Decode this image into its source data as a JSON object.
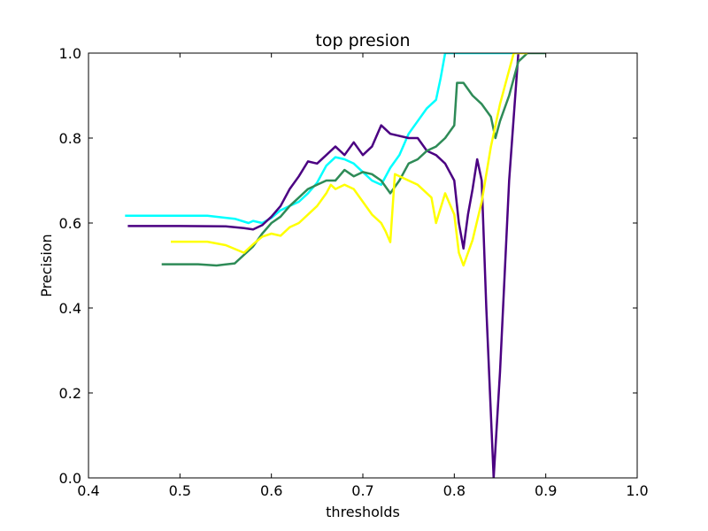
{
  "chart_data": {
    "type": "line",
    "title": "top presion",
    "xlabel": "thresholds",
    "ylabel": "Precision",
    "xlim": [
      0.4,
      1.0
    ],
    "ylim": [
      0.0,
      1.0
    ],
    "xticks": [
      "0.4",
      "0.5",
      "0.6",
      "0.7",
      "0.8",
      "0.9",
      "1.0"
    ],
    "yticks": [
      "0.0",
      "0.2",
      "0.4",
      "0.6",
      "0.8",
      "1.0"
    ],
    "grid": false,
    "series": [
      {
        "color": "#00ffff",
        "values": [
          [
            0.44,
            0.617
          ],
          [
            0.5,
            0.617
          ],
          [
            0.53,
            0.617
          ],
          [
            0.56,
            0.61
          ],
          [
            0.575,
            0.6
          ],
          [
            0.58,
            0.605
          ],
          [
            0.59,
            0.6
          ],
          [
            0.6,
            0.612
          ],
          [
            0.61,
            0.63
          ],
          [
            0.62,
            0.64
          ],
          [
            0.63,
            0.65
          ],
          [
            0.64,
            0.67
          ],
          [
            0.65,
            0.695
          ],
          [
            0.66,
            0.735
          ],
          [
            0.67,
            0.755
          ],
          [
            0.68,
            0.75
          ],
          [
            0.69,
            0.74
          ],
          [
            0.7,
            0.72
          ],
          [
            0.71,
            0.7
          ],
          [
            0.72,
            0.69
          ],
          [
            0.73,
            0.73
          ],
          [
            0.74,
            0.76
          ],
          [
            0.75,
            0.81
          ],
          [
            0.76,
            0.84
          ],
          [
            0.77,
            0.87
          ],
          [
            0.78,
            0.89
          ],
          [
            0.785,
            0.94
          ],
          [
            0.79,
            1.0
          ],
          [
            0.87,
            1.0
          ]
        ]
      },
      {
        "color": "#4b0082",
        "values": [
          [
            0.443,
            0.593
          ],
          [
            0.5,
            0.593
          ],
          [
            0.55,
            0.592
          ],
          [
            0.57,
            0.588
          ],
          [
            0.58,
            0.585
          ],
          [
            0.59,
            0.595
          ],
          [
            0.6,
            0.615
          ],
          [
            0.61,
            0.64
          ],
          [
            0.62,
            0.68
          ],
          [
            0.63,
            0.71
          ],
          [
            0.64,
            0.745
          ],
          [
            0.65,
            0.74
          ],
          [
            0.66,
            0.76
          ],
          [
            0.67,
            0.78
          ],
          [
            0.68,
            0.76
          ],
          [
            0.69,
            0.79
          ],
          [
            0.7,
            0.76
          ],
          [
            0.71,
            0.78
          ],
          [
            0.72,
            0.83
          ],
          [
            0.73,
            0.81
          ],
          [
            0.75,
            0.8
          ],
          [
            0.76,
            0.8
          ],
          [
            0.77,
            0.77
          ],
          [
            0.78,
            0.76
          ],
          [
            0.79,
            0.74
          ],
          [
            0.8,
            0.7
          ],
          [
            0.805,
            0.6
          ],
          [
            0.81,
            0.54
          ],
          [
            0.815,
            0.62
          ],
          [
            0.82,
            0.68
          ],
          [
            0.825,
            0.75
          ],
          [
            0.83,
            0.7
          ],
          [
            0.835,
            0.4
          ],
          [
            0.843,
            0.0
          ],
          [
            0.85,
            0.25
          ],
          [
            0.86,
            0.7
          ],
          [
            0.87,
            1.0
          ]
        ]
      },
      {
        "color": "#2e8b57",
        "values": [
          [
            0.48,
            0.503
          ],
          [
            0.52,
            0.503
          ],
          [
            0.54,
            0.5
          ],
          [
            0.56,
            0.505
          ],
          [
            0.57,
            0.525
          ],
          [
            0.58,
            0.545
          ],
          [
            0.59,
            0.575
          ],
          [
            0.6,
            0.6
          ],
          [
            0.61,
            0.615
          ],
          [
            0.62,
            0.64
          ],
          [
            0.63,
            0.66
          ],
          [
            0.64,
            0.68
          ],
          [
            0.65,
            0.69
          ],
          [
            0.66,
            0.7
          ],
          [
            0.67,
            0.7
          ],
          [
            0.68,
            0.725
          ],
          [
            0.69,
            0.71
          ],
          [
            0.7,
            0.72
          ],
          [
            0.71,
            0.715
          ],
          [
            0.72,
            0.7
          ],
          [
            0.73,
            0.67
          ],
          [
            0.74,
            0.7
          ],
          [
            0.75,
            0.74
          ],
          [
            0.76,
            0.75
          ],
          [
            0.77,
            0.77
          ],
          [
            0.78,
            0.78
          ],
          [
            0.79,
            0.8
          ],
          [
            0.8,
            0.83
          ],
          [
            0.803,
            0.93
          ],
          [
            0.81,
            0.93
          ],
          [
            0.82,
            0.9
          ],
          [
            0.83,
            0.88
          ],
          [
            0.84,
            0.85
          ],
          [
            0.845,
            0.8
          ],
          [
            0.85,
            0.84
          ],
          [
            0.86,
            0.9
          ],
          [
            0.87,
            0.98
          ],
          [
            0.88,
            1.0
          ],
          [
            0.9,
            1.0
          ]
        ]
      },
      {
        "color": "#ffff00",
        "values": [
          [
            0.49,
            0.556
          ],
          [
            0.53,
            0.556
          ],
          [
            0.55,
            0.548
          ],
          [
            0.57,
            0.53
          ],
          [
            0.58,
            0.55
          ],
          [
            0.59,
            0.568
          ],
          [
            0.6,
            0.575
          ],
          [
            0.61,
            0.57
          ],
          [
            0.62,
            0.59
          ],
          [
            0.63,
            0.6
          ],
          [
            0.64,
            0.62
          ],
          [
            0.65,
            0.64
          ],
          [
            0.66,
            0.67
          ],
          [
            0.665,
            0.69
          ],
          [
            0.67,
            0.68
          ],
          [
            0.68,
            0.69
          ],
          [
            0.69,
            0.68
          ],
          [
            0.7,
            0.65
          ],
          [
            0.71,
            0.62
          ],
          [
            0.72,
            0.6
          ],
          [
            0.725,
            0.58
          ],
          [
            0.73,
            0.555
          ],
          [
            0.735,
            0.715
          ],
          [
            0.75,
            0.7
          ],
          [
            0.76,
            0.69
          ],
          [
            0.775,
            0.66
          ],
          [
            0.78,
            0.6
          ],
          [
            0.79,
            0.67
          ],
          [
            0.8,
            0.62
          ],
          [
            0.805,
            0.53
          ],
          [
            0.81,
            0.5
          ],
          [
            0.82,
            0.56
          ],
          [
            0.83,
            0.65
          ],
          [
            0.84,
            0.78
          ],
          [
            0.85,
            0.88
          ],
          [
            0.86,
            0.96
          ],
          [
            0.865,
            1.0
          ],
          [
            0.88,
            1.0
          ]
        ]
      }
    ]
  }
}
